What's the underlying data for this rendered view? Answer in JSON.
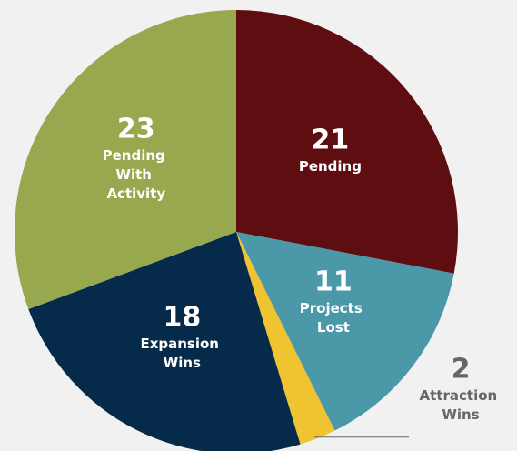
{
  "chart_data": {
    "type": "pie",
    "categories": [
      "Pending",
      "Projects Lost",
      "Attraction Wins",
      "Expansion Wins",
      "Pending With Activity"
    ],
    "values": [
      21,
      11,
      2,
      18,
      23
    ],
    "colors": [
      "#5e0e10",
      "#4a98a8",
      "#f0c330",
      "#062a4a",
      "#97a84e"
    ]
  }
}
